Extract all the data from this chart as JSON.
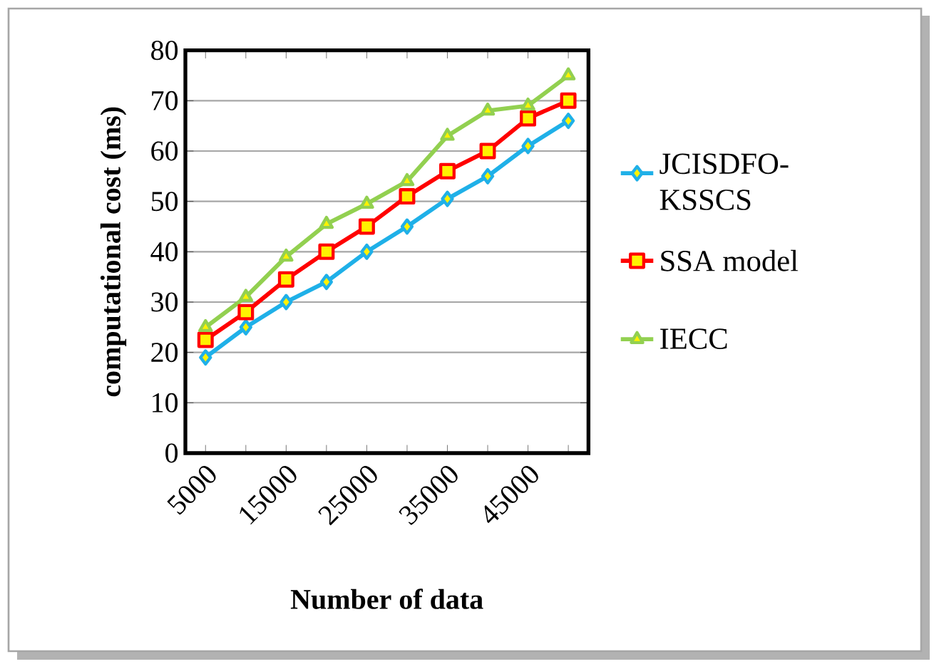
{
  "chart_data": {
    "type": "line",
    "xlabel": "Number of data",
    "ylabel": "computational cost (ms)",
    "categories": [
      "5000",
      null,
      "15000",
      null,
      "25000",
      null,
      "35000",
      null,
      "45000",
      null
    ],
    "series": [
      {
        "name": "JCISDFO-KSSCS",
        "color": "#1fb0e8",
        "marker": "diamond",
        "values": [
          19,
          25,
          30,
          34,
          40,
          45,
          50.5,
          55,
          61,
          66
        ]
      },
      {
        "name": "SSA model",
        "color": "#ff0000",
        "marker": "square",
        "values": [
          22.5,
          28,
          34.5,
          40,
          45,
          51,
          56,
          60,
          66.5,
          70
        ]
      },
      {
        "name": "IECC",
        "color": "#92d050",
        "marker": "triangle",
        "values": [
          25,
          31,
          39,
          45.5,
          49.5,
          54,
          63,
          68,
          69,
          75
        ]
      }
    ],
    "ylim": [
      0,
      80
    ],
    "yticks": [
      0,
      10,
      20,
      30,
      40,
      50,
      60,
      70,
      80
    ],
    "grid": "y",
    "legend": "right",
    "line_style": "solid"
  }
}
